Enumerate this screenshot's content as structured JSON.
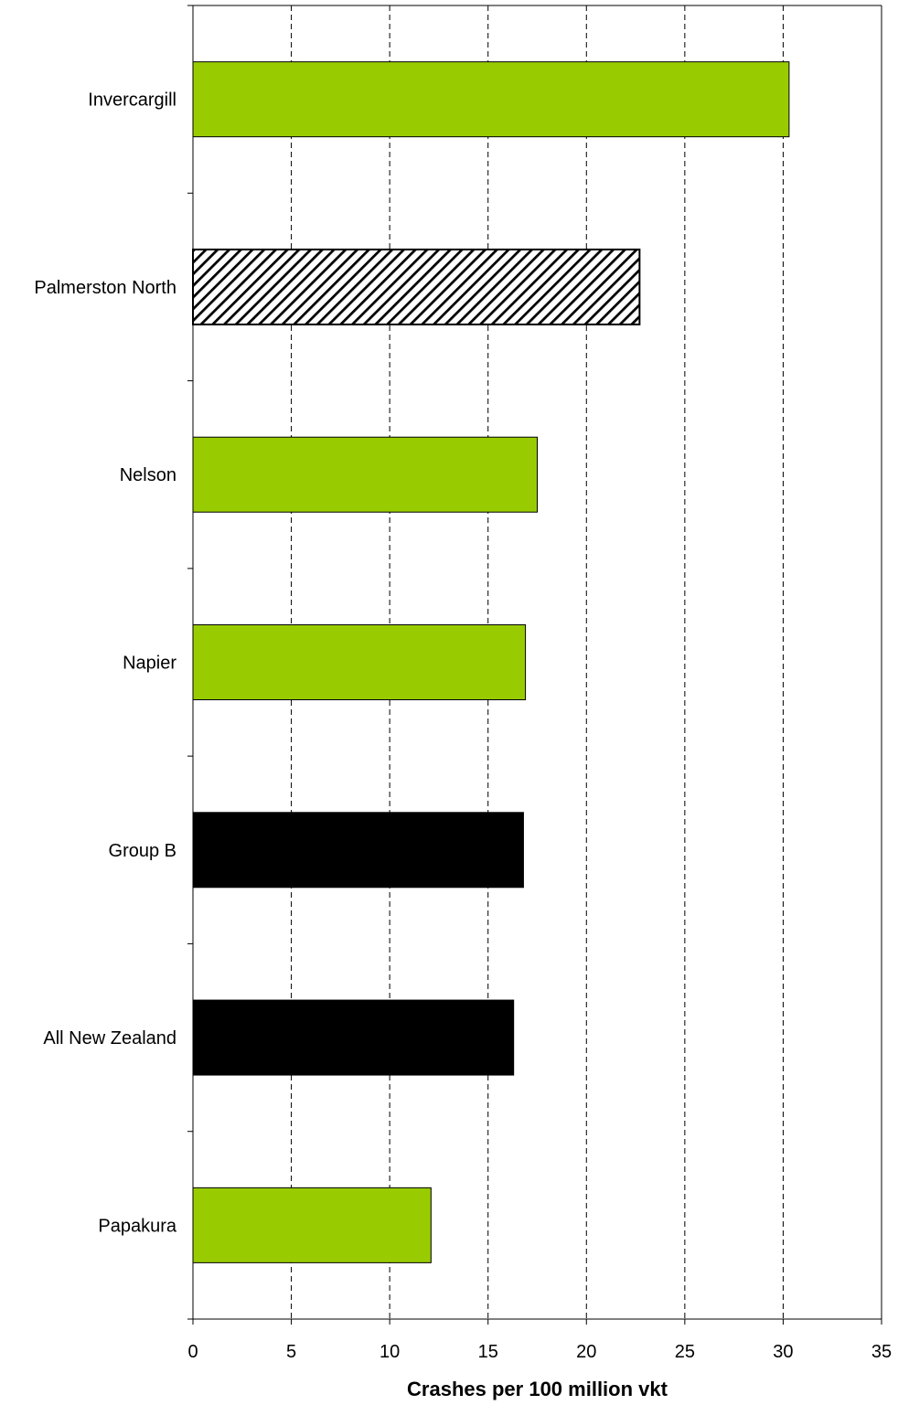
{
  "chart_data": {
    "type": "bar",
    "orientation": "horizontal",
    "categories": [
      "Invercargill",
      "Palmerston North",
      "Nelson",
      "Napier",
      "Group B",
      "All New Zealand",
      "Papakura"
    ],
    "values": [
      30.3,
      22.7,
      17.5,
      16.9,
      16.8,
      16.3,
      12.1
    ],
    "bar_styles": [
      "green",
      "hatched",
      "green",
      "green",
      "black",
      "black",
      "green"
    ],
    "colors": {
      "green": "#99CC00",
      "black": "#000000",
      "hatch_stroke": "#000000",
      "hatch_background": "#ffffff"
    },
    "title": "",
    "xlabel": "Crashes per 100 million vkt",
    "ylabel": "",
    "xlim": [
      0,
      35
    ],
    "xticks": [
      0,
      5,
      10,
      15,
      20,
      25,
      30,
      35
    ],
    "grid": "vertical dashed",
    "legend": "none"
  }
}
